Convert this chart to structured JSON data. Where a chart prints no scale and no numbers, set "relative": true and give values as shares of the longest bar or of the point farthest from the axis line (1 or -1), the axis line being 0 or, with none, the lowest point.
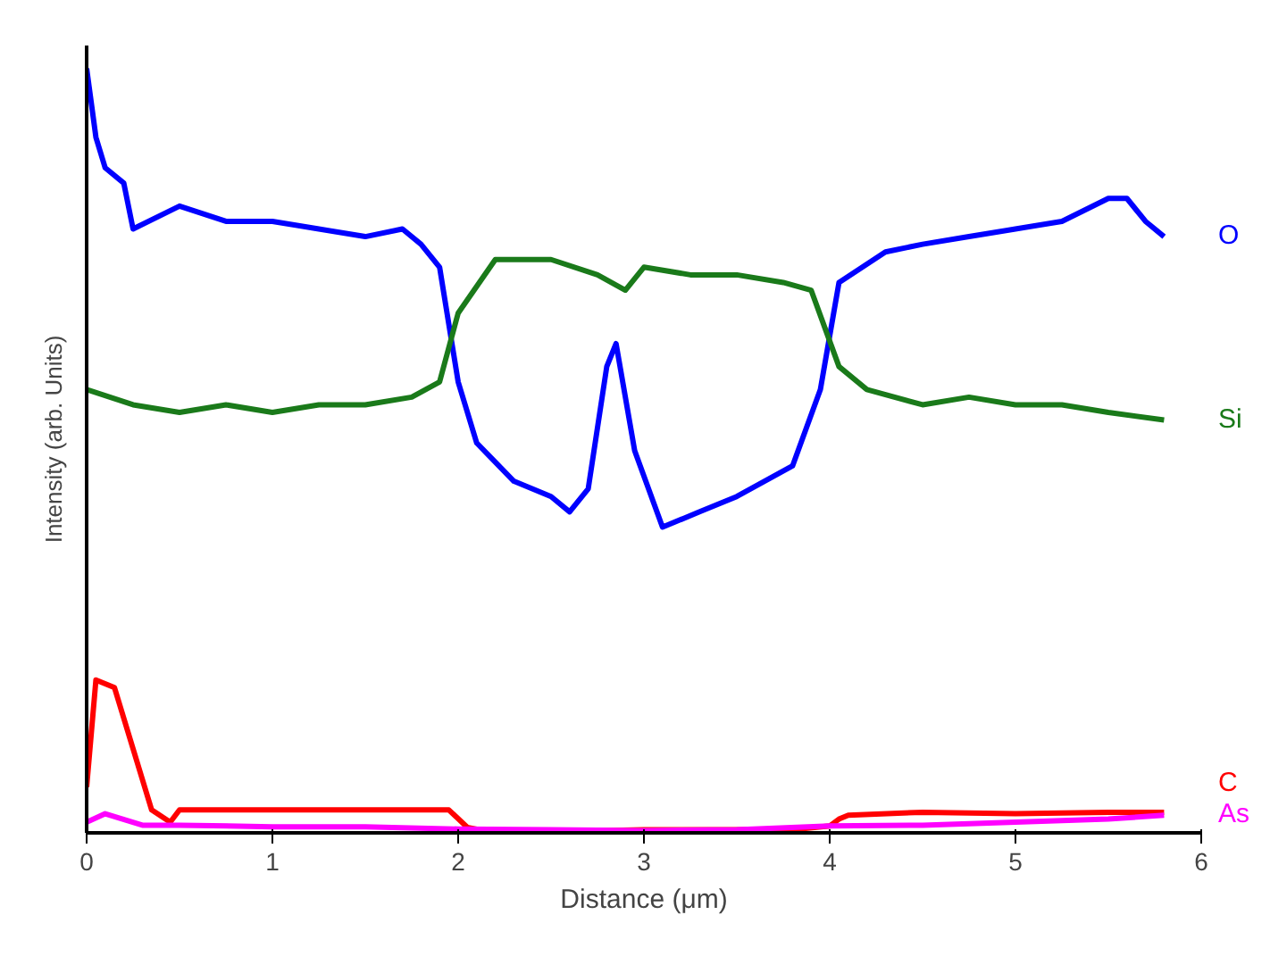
{
  "chart_data": {
    "type": "line",
    "xlabel": "Distance (μm)",
    "ylabel": "Intensity (arb. Units)",
    "relative": true,
    "xlim": [
      0,
      6
    ],
    "xticks": [
      0,
      1,
      2,
      3,
      4,
      5,
      6
    ],
    "grid": false,
    "legend": false,
    "marker": "none",
    "line_style": "solid",
    "series": [
      {
        "name": "O",
        "color": "#0000ff",
        "x": [
          0,
          0.05,
          0.1,
          0.2,
          0.25,
          0.5,
          0.75,
          1,
          1.25,
          1.5,
          1.7,
          1.8,
          1.9,
          2,
          2.1,
          2.3,
          2.5,
          2.6,
          2.7,
          2.8,
          2.85,
          2.95,
          3.1,
          3.3,
          3.5,
          3.8,
          3.95,
          4.05,
          4.3,
          4.5,
          4.75,
          5,
          5.25,
          5.5,
          5.6,
          5.7,
          5.8
        ],
        "values": [
          1,
          0.91,
          0.87,
          0.85,
          0.79,
          0.82,
          0.8,
          0.8,
          0.79,
          0.78,
          0.79,
          0.77,
          0.74,
          0.59,
          0.51,
          0.46,
          0.44,
          0.42,
          0.45,
          0.61,
          0.64,
          0.5,
          0.4,
          0.42,
          0.44,
          0.48,
          0.58,
          0.72,
          0.76,
          0.77,
          0.78,
          0.79,
          0.8,
          0.83,
          0.83,
          0.8,
          0.78
        ]
      },
      {
        "name": "Si",
        "color": "#1a7a1a",
        "x": [
          0,
          0.25,
          0.5,
          0.75,
          1,
          1.25,
          1.5,
          1.75,
          1.9,
          2,
          2.2,
          2.5,
          2.75,
          2.9,
          3,
          3.25,
          3.5,
          3.75,
          3.9,
          4.05,
          4.2,
          4.5,
          4.75,
          5,
          5.25,
          5.5,
          5.8
        ],
        "values": [
          0.58,
          0.56,
          0.55,
          0.56,
          0.55,
          0.56,
          0.56,
          0.57,
          0.59,
          0.68,
          0.75,
          0.75,
          0.73,
          0.71,
          0.74,
          0.73,
          0.73,
          0.72,
          0.71,
          0.61,
          0.58,
          0.56,
          0.57,
          0.56,
          0.56,
          0.55,
          0.54
        ]
      },
      {
        "name": "C",
        "color": "#ff0000",
        "x": [
          0,
          0.05,
          0.15,
          0.25,
          0.35,
          0.45,
          0.5,
          1,
          1.5,
          1.95,
          2.05,
          2.2,
          3,
          3.8,
          4,
          4.05,
          4.1,
          4.5,
          5,
          5.5,
          5.8
        ],
        "values": [
          0.06,
          0.2,
          0.19,
          0.11,
          0.03,
          0.014,
          0.03,
          0.03,
          0.03,
          0.03,
          0.007,
          0,
          0.004,
          0.004,
          0.009,
          0.018,
          0.023,
          0.027,
          0.025,
          0.027,
          0.027
        ]
      },
      {
        "name": "As",
        "color": "#ff00ff",
        "x": [
          0,
          0.1,
          0.3,
          0.5,
          1,
          1.5,
          2,
          2.5,
          3,
          3.5,
          4,
          4.5,
          5,
          5.5,
          5.8
        ],
        "values": [
          0.014,
          0.025,
          0.01,
          0.01,
          0.008,
          0.008,
          0.005,
          0.004,
          0.003,
          0.004,
          0.009,
          0.01,
          0.014,
          0.018,
          0.023
        ]
      }
    ]
  }
}
